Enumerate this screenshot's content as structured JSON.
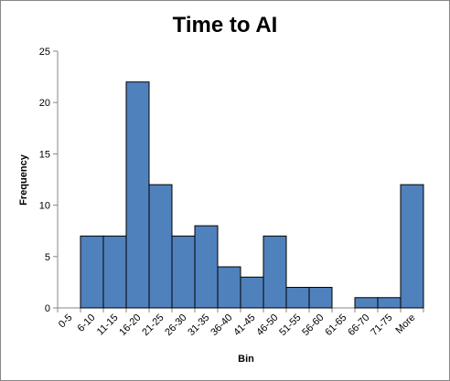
{
  "chart_data": {
    "type": "bar",
    "title": "Time to AI",
    "xlabel": "Bin",
    "ylabel": "Frequency",
    "categories": [
      "0-5",
      "6-10",
      "11-15",
      "16-20",
      "21-25",
      "26-30",
      "31-35",
      "36-40",
      "41-45",
      "46-50",
      "51-55",
      "56-60",
      "61-65",
      "66-70",
      "71-75",
      "More"
    ],
    "values": [
      0,
      7,
      7,
      22,
      12,
      7,
      8,
      4,
      3,
      7,
      2,
      2,
      0,
      1,
      1,
      12
    ],
    "ylim": [
      0,
      25
    ],
    "yticks": [
      0,
      5,
      10,
      15,
      20,
      25
    ],
    "grid": false,
    "legend": "none",
    "bar_color": "#4F81BD",
    "bar_edge_color": "#000000"
  }
}
